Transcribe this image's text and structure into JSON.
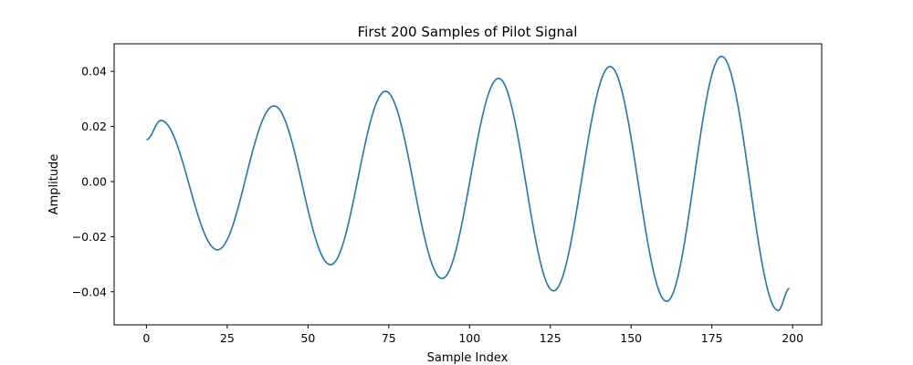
{
  "chart_data": {
    "type": "line",
    "title": "First 200 Samples of Pilot Signal",
    "xlabel": "Sample Index",
    "ylabel": "Amplitude",
    "xlim": [
      -10,
      209
    ],
    "ylim": [
      -0.052,
      0.05
    ],
    "xticks": [
      0,
      25,
      50,
      75,
      100,
      125,
      150,
      175,
      200
    ],
    "xtick_labels": [
      "0",
      "25",
      "50",
      "75",
      "100",
      "125",
      "150",
      "175",
      "200"
    ],
    "yticks": [
      -0.04,
      -0.02,
      0.0,
      0.02,
      0.04
    ],
    "ytick_labels": [
      "−0.04",
      "−0.02",
      "0.00",
      "0.02",
      "0.04"
    ],
    "grid": false,
    "legend": "none",
    "line_color": "#1f77b4",
    "series": [
      {
        "x": [
          0,
          4.5,
          22,
          39.5,
          57,
          74,
          91.5,
          109,
          126,
          143.5,
          161,
          178,
          195.5,
          199
        ],
        "values": [
          0.0152,
          0.0222,
          -0.0248,
          0.0275,
          -0.0302,
          0.0328,
          -0.0352,
          0.0375,
          -0.0397,
          0.0418,
          -0.0435,
          0.0455,
          -0.0468,
          -0.0388
        ]
      }
    ]
  }
}
